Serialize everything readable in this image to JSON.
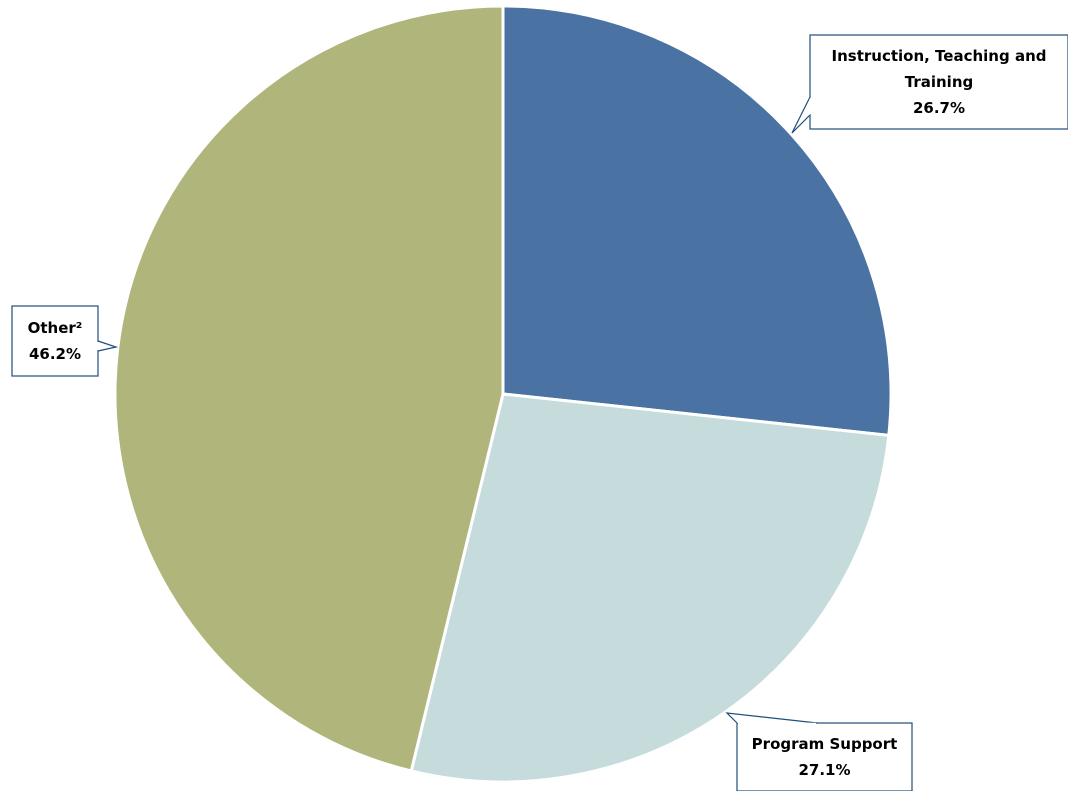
{
  "chart_data": {
    "type": "pie",
    "title": "",
    "start_angle_deg": 0,
    "direction": "clockwise",
    "slices": [
      {
        "label_lines": [
          "Instruction, Teaching and",
          "Training"
        ],
        "value": 26.7,
        "value_label": "26.7%",
        "color": "#4a72a2"
      },
      {
        "label_lines": [
          "Program Support"
        ],
        "value": 27.1,
        "value_label": "27.1%",
        "color": "#c5dbdc"
      },
      {
        "label_lines": [
          "Other²"
        ],
        "value": 46.2,
        "value_label": "46.2%",
        "color": "#b0b67b"
      }
    ],
    "legend": "none"
  }
}
